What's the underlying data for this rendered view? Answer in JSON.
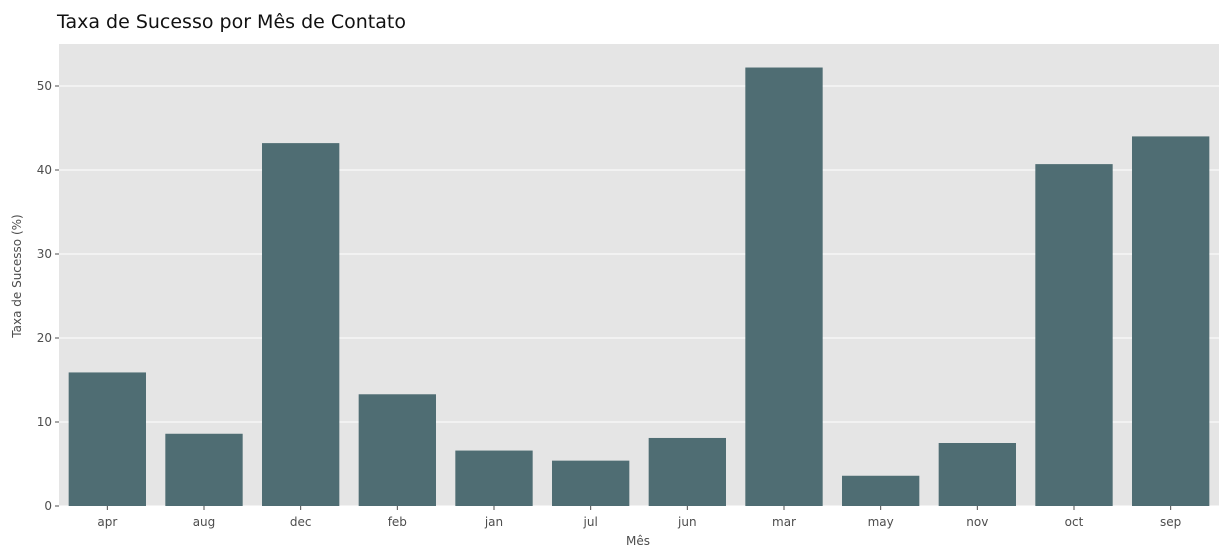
{
  "colors": {
    "bar": "#4f6d73",
    "plot_background": "#e5e5e5",
    "grid": "#ffffff",
    "tick": "#4d4d4d"
  },
  "chart_data": {
    "type": "bar",
    "title": "Taxa de Sucesso por Mês de Contato",
    "xlabel": "Mês",
    "ylabel": "Taxa de Sucesso (%)",
    "categories": [
      "apr",
      "aug",
      "dec",
      "feb",
      "jan",
      "jul",
      "jun",
      "mar",
      "may",
      "nov",
      "oct",
      "sep"
    ],
    "values": [
      15.9,
      8.6,
      43.2,
      13.3,
      6.6,
      5.4,
      8.1,
      52.2,
      3.6,
      7.5,
      40.7,
      44.0
    ],
    "ylim": [
      0,
      55
    ],
    "yticks": [
      0,
      10,
      20,
      30,
      40,
      50
    ],
    "grid": true,
    "legend": "none"
  }
}
